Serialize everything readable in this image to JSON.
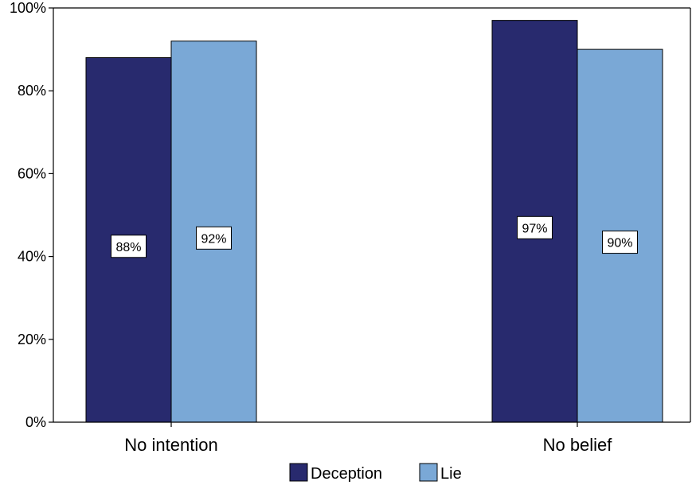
{
  "chart_data": {
    "type": "bar",
    "categories": [
      "No intention",
      "No belief"
    ],
    "series": [
      {
        "name": "Deception",
        "values": [
          88,
          97
        ],
        "color": "#282a6e"
      },
      {
        "name": "Lie",
        "values": [
          92,
          90
        ],
        "color": "#7aa8d6"
      }
    ],
    "data_labels": [
      [
        "88%",
        "97%"
      ],
      [
        "92%",
        "90%"
      ]
    ],
    "ylim": [
      0,
      100
    ],
    "yticks": [
      0,
      20,
      40,
      60,
      80,
      100
    ],
    "ytick_labels": [
      "0%",
      "20%",
      "40%",
      "60%",
      "80%",
      "100%"
    ],
    "xlabel": "",
    "ylabel": "",
    "title": "",
    "grid": false,
    "legend_position": "bottom-center"
  }
}
